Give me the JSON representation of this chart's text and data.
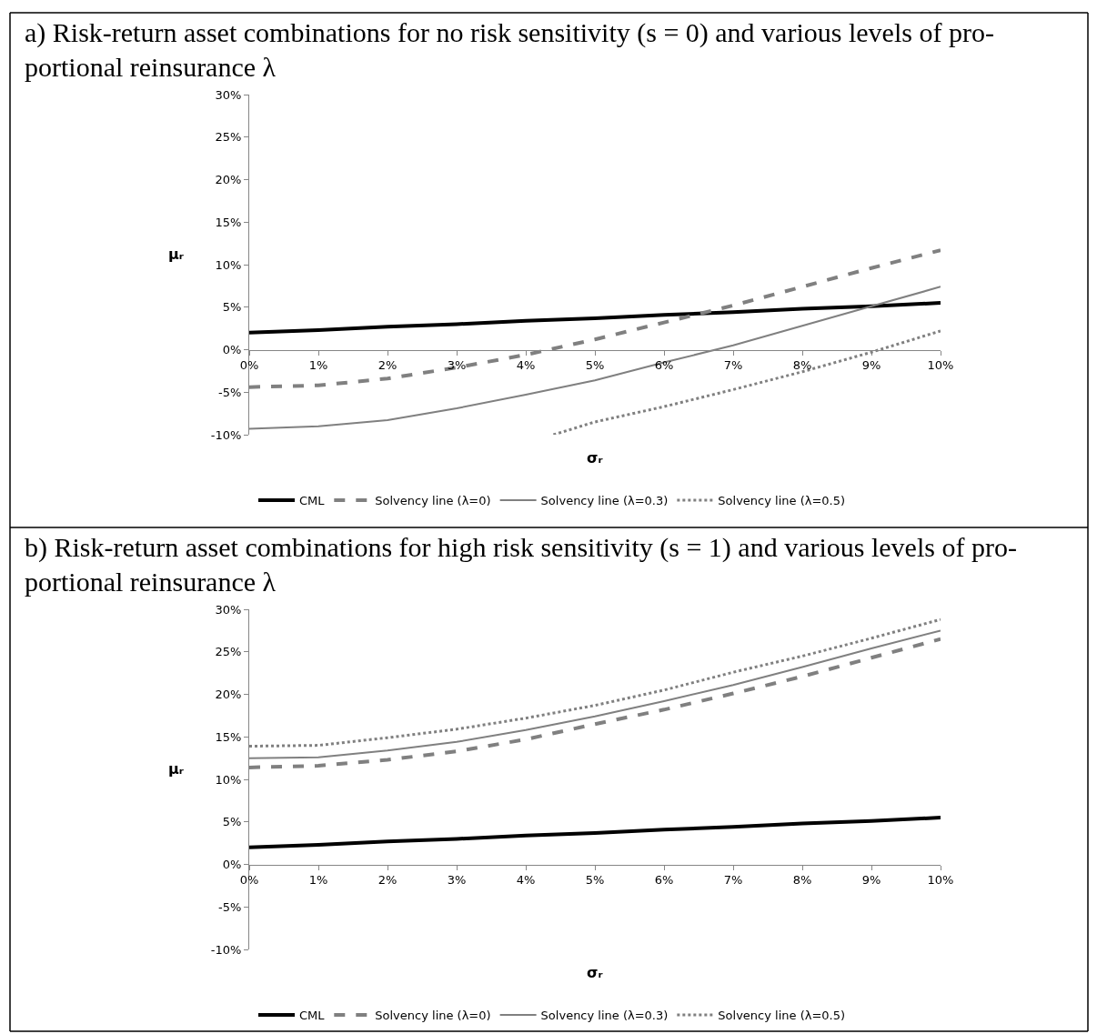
{
  "chart_data": [
    {
      "type": "line",
      "title": "a) Risk-return asset combinations for no risk sensitivity (s = 0) and various levels of pro-\nportional reinsurance λ",
      "xlabel": "σᵣ",
      "ylabel": "μᵣ",
      "x": [
        0,
        1,
        2,
        3,
        4,
        5,
        6,
        7,
        8,
        9,
        10
      ],
      "xlim": [
        0,
        10
      ],
      "xticks": [
        {
          "value": 0,
          "label": "0%"
        },
        {
          "value": 1,
          "label": "1%"
        },
        {
          "value": 2,
          "label": "2%"
        },
        {
          "value": 3,
          "label": "3%"
        },
        {
          "value": 4,
          "label": "4%"
        },
        {
          "value": 5,
          "label": "5%"
        },
        {
          "value": 6,
          "label": "6%"
        },
        {
          "value": 7,
          "label": "7%"
        },
        {
          "value": 8,
          "label": "8%"
        },
        {
          "value": 9,
          "label": "9%"
        },
        {
          "value": 10,
          "label": "10%"
        }
      ],
      "ylim": [
        -10,
        30
      ],
      "yticks": [
        {
          "value": -10,
          "label": "-10%"
        },
        {
          "value": -5,
          "label": "-5%"
        },
        {
          "value": 0,
          "label": "0%"
        },
        {
          "value": 5,
          "label": "5%"
        },
        {
          "value": 10,
          "label": "10%"
        },
        {
          "value": 15,
          "label": "15%"
        },
        {
          "value": 20,
          "label": "20%"
        },
        {
          "value": 25,
          "label": "25%"
        },
        {
          "value": 30,
          "label": "30%"
        }
      ],
      "legend": "bottom",
      "series": [
        {
          "name": "CML",
          "color": "#000000",
          "line_style": "solid",
          "values": [
            2.0,
            2.3,
            2.7,
            3.0,
            3.4,
            3.7,
            4.1,
            4.4,
            4.8,
            5.1,
            5.5
          ]
        },
        {
          "name": "Solvency line (λ=0)",
          "color": "#808080",
          "line_style": "dashed",
          "values": [
            -4.4,
            -4.2,
            -3.4,
            -2.1,
            -0.6,
            1.2,
            3.2,
            5.2,
            7.4,
            9.6,
            11.7
          ]
        },
        {
          "name": "Solvency line (λ=0.3)",
          "color": "#808080",
          "line_style": "solid",
          "values": [
            -9.3,
            -9.0,
            -8.3,
            -6.9,
            -5.3,
            -3.6,
            -1.5,
            0.5,
            2.8,
            5.1,
            7.4
          ]
        },
        {
          "name": "Solvency line (λ=0.5)",
          "color": "#808080",
          "line_style": "dotted",
          "x": [
            4.4,
            5,
            6,
            7,
            8,
            9,
            10
          ],
          "values": [
            -10,
            -8.5,
            -6.7,
            -4.7,
            -2.6,
            -0.3,
            2.2
          ]
        }
      ]
    },
    {
      "type": "line",
      "title": "b) Risk-return asset combinations for high risk sensitivity (s = 1) and various levels of pro-\nportional reinsurance λ",
      "xlabel": "σᵣ",
      "ylabel": "μᵣ",
      "x": [
        0,
        1,
        2,
        3,
        4,
        5,
        6,
        7,
        8,
        9,
        10
      ],
      "xlim": [
        0,
        10
      ],
      "xticks": [
        {
          "value": 0,
          "label": "0%"
        },
        {
          "value": 1,
          "label": "1%"
        },
        {
          "value": 2,
          "label": "2%"
        },
        {
          "value": 3,
          "label": "3%"
        },
        {
          "value": 4,
          "label": "4%"
        },
        {
          "value": 5,
          "label": "5%"
        },
        {
          "value": 6,
          "label": "6%"
        },
        {
          "value": 7,
          "label": "7%"
        },
        {
          "value": 8,
          "label": "8%"
        },
        {
          "value": 9,
          "label": "9%"
        },
        {
          "value": 10,
          "label": "10%"
        }
      ],
      "ylim": [
        -10,
        30
      ],
      "yticks": [
        {
          "value": -10,
          "label": "-10%"
        },
        {
          "value": -5,
          "label": "-5%"
        },
        {
          "value": 0,
          "label": "0%"
        },
        {
          "value": 5,
          "label": "5%"
        },
        {
          "value": 10,
          "label": "10%"
        },
        {
          "value": 15,
          "label": "15%"
        },
        {
          "value": 20,
          "label": "20%"
        },
        {
          "value": 25,
          "label": "25%"
        },
        {
          "value": 30,
          "label": "30%"
        }
      ],
      "legend": "bottom",
      "series": [
        {
          "name": "CML",
          "color": "#000000",
          "line_style": "solid",
          "values": [
            2.0,
            2.3,
            2.7,
            3.0,
            3.4,
            3.7,
            4.1,
            4.4,
            4.8,
            5.1,
            5.5
          ]
        },
        {
          "name": "Solvency line (λ=0)",
          "color": "#808080",
          "line_style": "dashed",
          "values": [
            11.4,
            11.6,
            12.3,
            13.3,
            14.7,
            16.5,
            18.2,
            20.1,
            22.1,
            24.3,
            26.5
          ]
        },
        {
          "name": "Solvency line (λ=0.3)",
          "color": "#808080",
          "line_style": "solid",
          "values": [
            12.5,
            12.6,
            13.4,
            14.4,
            15.8,
            17.4,
            19.2,
            21.1,
            23.2,
            25.4,
            27.5
          ]
        },
        {
          "name": "Solvency line (λ=0.5)",
          "color": "#808080",
          "line_style": "dotted",
          "values": [
            13.9,
            14.0,
            14.9,
            15.9,
            17.2,
            18.7,
            20.5,
            22.6,
            24.5,
            26.6,
            28.8
          ]
        }
      ]
    }
  ]
}
